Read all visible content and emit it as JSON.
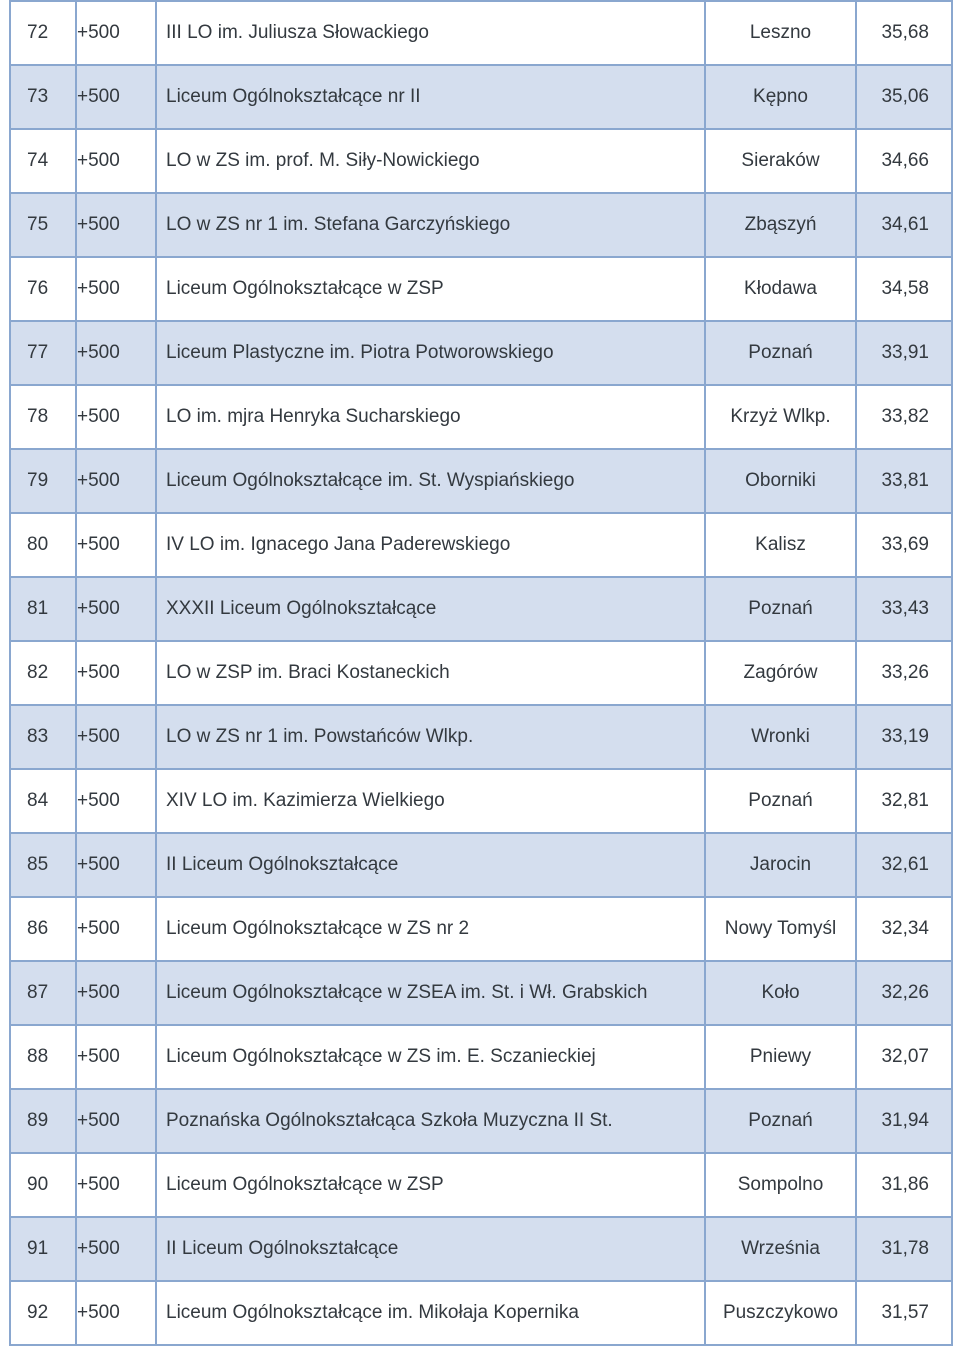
{
  "rows": [
    {
      "rank": "72",
      "delta": "+500",
      "school": "III LO im. Juliusza Słowackiego",
      "city": "Leszno",
      "score": "35,68"
    },
    {
      "rank": "73",
      "delta": "+500",
      "school": "Liceum Ogólnokształcące nr II",
      "city": "Kępno",
      "score": "35,06"
    },
    {
      "rank": "74",
      "delta": "+500",
      "school": "LO w ZS im. prof. M. Siły-Nowickiego",
      "city": "Sieraków",
      "score": "34,66"
    },
    {
      "rank": "75",
      "delta": "+500",
      "school": "LO w ZS nr 1 im. Stefana Garczyńskiego",
      "city": "Zbąszyń",
      "score": "34,61"
    },
    {
      "rank": "76",
      "delta": "+500",
      "school": "Liceum Ogólnokształcące w ZSP",
      "city": "Kłodawa",
      "score": "34,58"
    },
    {
      "rank": "77",
      "delta": "+500",
      "school": "Liceum Plastyczne im. Piotra Potworowskiego",
      "city": "Poznań",
      "score": "33,91"
    },
    {
      "rank": "78",
      "delta": "+500",
      "school": "LO im. mjra Henryka Sucharskiego",
      "city": "Krzyż Wlkp.",
      "score": "33,82"
    },
    {
      "rank": "79",
      "delta": "+500",
      "school": "Liceum Ogólnokształcące im. St. Wyspiańskiego",
      "city": "Oborniki",
      "score": "33,81"
    },
    {
      "rank": "80",
      "delta": "+500",
      "school": "IV LO im. Ignacego Jana Paderewskiego",
      "city": "Kalisz",
      "score": "33,69"
    },
    {
      "rank": "81",
      "delta": "+500",
      "school": "XXXII Liceum Ogólnokształcące",
      "city": "Poznań",
      "score": "33,43"
    },
    {
      "rank": "82",
      "delta": "+500",
      "school": "LO w ZSP im. Braci Kostaneckich",
      "city": "Zagórów",
      "score": "33,26"
    },
    {
      "rank": "83",
      "delta": "+500",
      "school": "LO w ZS nr 1 im. Powstańców Wlkp.",
      "city": "Wronki",
      "score": "33,19"
    },
    {
      "rank": "84",
      "delta": "+500",
      "school": "XIV LO im. Kazimierza Wielkiego",
      "city": "Poznań",
      "score": "32,81"
    },
    {
      "rank": "85",
      "delta": "+500",
      "school": "II Liceum Ogólnokształcące",
      "city": "Jarocin",
      "score": "32,61"
    },
    {
      "rank": "86",
      "delta": "+500",
      "school": "Liceum Ogólnokształcące w ZS nr 2",
      "city": "Nowy Tomyśl",
      "score": "32,34"
    },
    {
      "rank": "87",
      "delta": "+500",
      "school": "Liceum Ogólnokształcące w ZSEA im. St. i Wł. Grabskich",
      "city": "Koło",
      "score": "32,26"
    },
    {
      "rank": "88",
      "delta": "+500",
      "school": "Liceum Ogólnokształcące w ZS im. E. Sczanieckiej",
      "city": "Pniewy",
      "score": "32,07"
    },
    {
      "rank": "89",
      "delta": "+500",
      "school": "Poznańska Ogólnokształcąca Szkoła Muzyczna II St.",
      "city": "Poznań",
      "score": "31,94"
    },
    {
      "rank": "90",
      "delta": "+500",
      "school": "Liceum Ogólnokształcące w ZSP",
      "city": "Sompolno",
      "score": "31,86"
    },
    {
      "rank": "91",
      "delta": "+500",
      "school": "II Liceum Ogólnokształcące",
      "city": "Września",
      "score": "31,78"
    },
    {
      "rank": "92",
      "delta": "+500",
      "school": "Liceum Ogólnokształcące im. Mikołaja Kopernika",
      "city": "Puszczykowo",
      "score": "31,57"
    }
  ],
  "colors": {
    "border": "#8aa7cf",
    "row_alt": "#d4deee",
    "row": "#ffffff",
    "text": "#33393f"
  }
}
